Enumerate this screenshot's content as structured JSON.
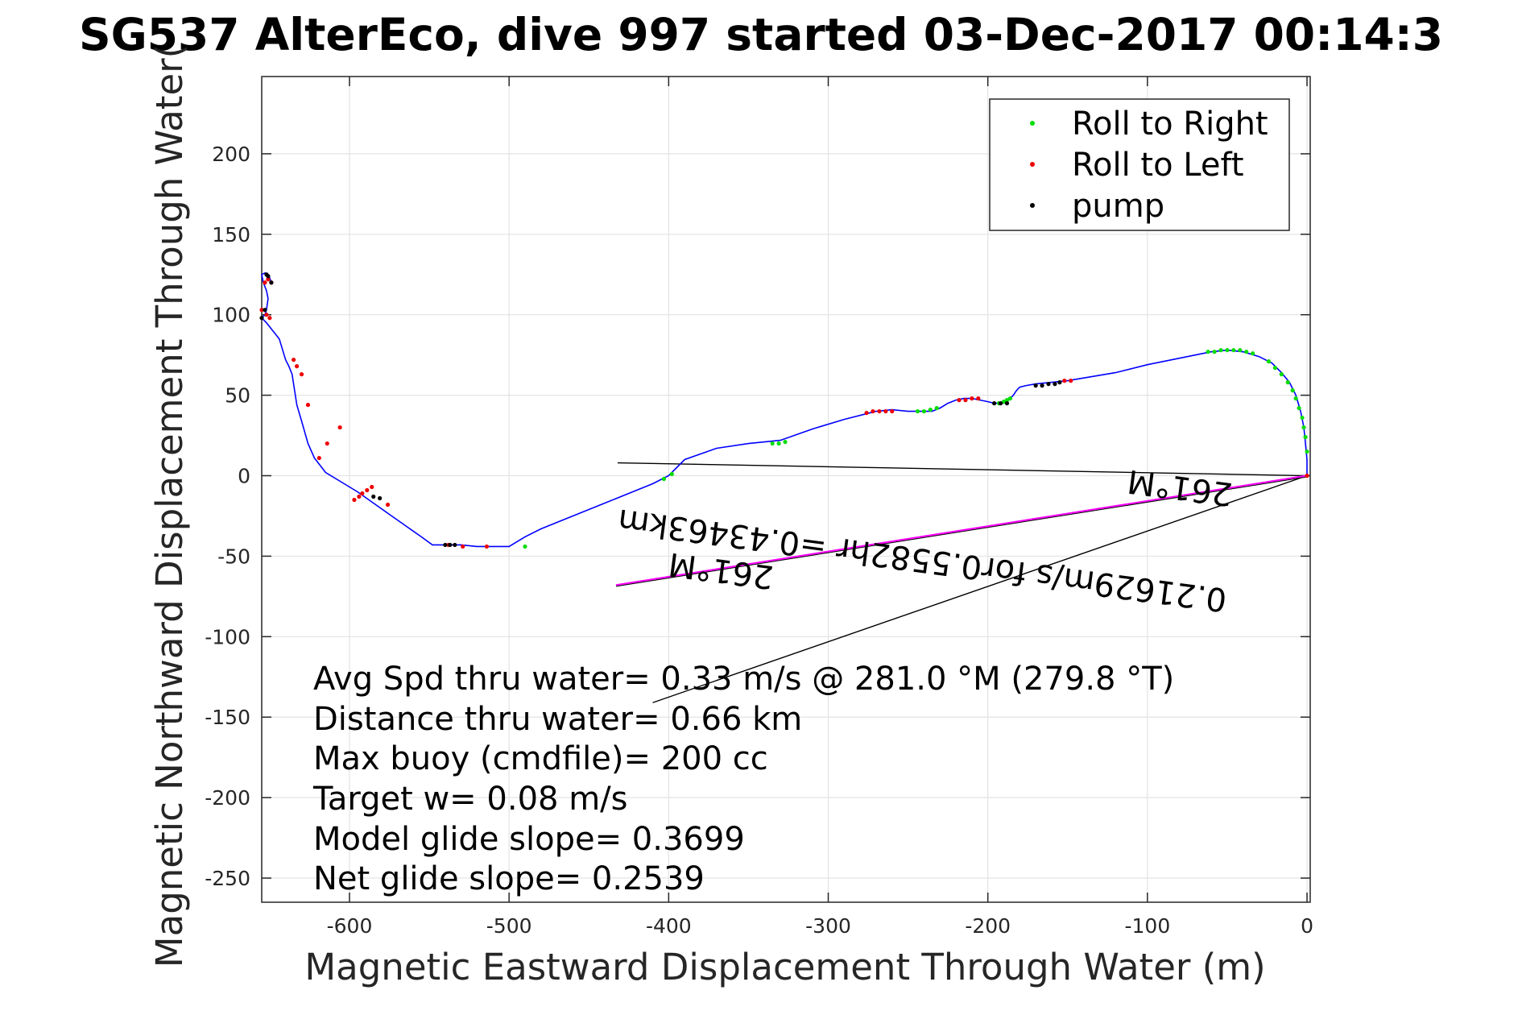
{
  "chart_data": {
    "type": "line",
    "title": "SG537 AlterEco, dive 997 started 03-Dec-2017 00:14:3",
    "xlabel": "Magnetic Eastward Displacement Through Water (m)",
    "ylabel": "Magnetic Northward Displacement Through Water(",
    "xlim": [
      -655,
      2
    ],
    "ylim": [
      -265,
      248
    ],
    "xticks": [
      -600,
      -500,
      -400,
      -300,
      -200,
      -100,
      0
    ],
    "yticks": [
      -250,
      -200,
      -150,
      -100,
      -50,
      0,
      50,
      100,
      150,
      200
    ],
    "xtick_labels": [
      "-600",
      "-500",
      "-400",
      "-300",
      "-200",
      "-100",
      "0"
    ],
    "ytick_labels": [
      "-250",
      "-200",
      "-150",
      "-100",
      "-50",
      "0",
      "50",
      "100",
      "150",
      "200"
    ],
    "grid": true,
    "legend_position": "top-right",
    "legend": [
      "Roll to Right",
      "Roll to Left",
      "pump"
    ],
    "colors": {
      "track": "#0000ff",
      "roll_right": "#00dd00",
      "roll_left": "#ee0000",
      "pump": "#000000",
      "current": "#ff00ff"
    },
    "track": {
      "x": [
        0,
        0,
        -1,
        -2,
        -4,
        -7,
        -11,
        -16,
        -22,
        -30,
        -40,
        -50,
        -60,
        -80,
        -100,
        -120,
        -150,
        -160,
        -170,
        -176,
        -180,
        -182,
        -184,
        -186,
        -188,
        -190,
        -193,
        -196,
        -200,
        -205,
        -210,
        -215,
        -220,
        -225,
        -230,
        -235,
        -240,
        -245,
        -250,
        -260,
        -270,
        -290,
        -310,
        -330,
        -350,
        -370,
        -390,
        -395,
        -400,
        -410,
        -420,
        -440,
        -460,
        -480,
        -490,
        -500,
        -510,
        -520,
        -530,
        -540,
        -548,
        -555,
        -565,
        -575,
        -585,
        -595,
        -605,
        -615,
        -622,
        -626,
        -630,
        -633,
        -636,
        -638,
        -640,
        -644,
        -648,
        -652,
        -655,
        -653,
        -652,
        -651,
        -652,
        -654,
        -655,
        -653,
        -650,
        -649
      ],
      "y": [
        0,
        10,
        20,
        30,
        40,
        50,
        58,
        64,
        70,
        74,
        77,
        78,
        77,
        73,
        69,
        64,
        59,
        58,
        57,
        56,
        55,
        53,
        50,
        48,
        46,
        45,
        45,
        45,
        46,
        47,
        48,
        48,
        47,
        45,
        42,
        40,
        40,
        40,
        40,
        41,
        40,
        35,
        29,
        22,
        20,
        17,
        10,
        5,
        0,
        -5,
        -9,
        -17,
        -25,
        -33,
        -38,
        -44,
        -44,
        -44,
        -43,
        -43,
        -43,
        -38,
        -31,
        -24,
        -17,
        -10,
        -4,
        2,
        11,
        20,
        34,
        44,
        63,
        68,
        72,
        85,
        90,
        95,
        98,
        100,
        103,
        110,
        115,
        120,
        125,
        126,
        123,
        120
      ],
      "segments": [
        [
          0,
          0.8
        ],
        [
          -30,
          -3
        ],
        [
          -60,
          -5
        ],
        [
          -100,
          -8
        ],
        [
          -150,
          -12
        ],
        [
          -200,
          -15
        ],
        [
          -250,
          -20
        ],
        [
          -300,
          -25
        ],
        [
          -350,
          -31
        ],
        [
          -400,
          -38
        ],
        [
          -452,
          -44
        ],
        [
          -500,
          -49
        ]
      ]
    },
    "roll_right": {
      "x": [
        -62,
        -58,
        -54,
        -50,
        -46,
        -42,
        -38,
        -34,
        -24,
        -20,
        -16,
        -12,
        -9,
        -7,
        -5,
        -3,
        -2,
        -1,
        0,
        -186,
        -188,
        -190,
        -193,
        -244,
        -240,
        -236,
        -232,
        -335,
        -331,
        -327,
        -403,
        -398,
        -490
      ],
      "y": [
        77,
        77,
        78,
        78,
        78,
        78,
        77,
        76,
        71,
        67,
        63,
        58,
        53,
        48,
        42,
        36,
        30,
        24,
        15,
        48,
        47,
        46,
        45,
        40,
        40,
        41,
        42,
        20,
        20,
        21,
        -2,
        1,
        -44
      ]
    },
    "roll_left": {
      "x": [
        -276,
        -272,
        -268,
        -264,
        -260,
        -218,
        -214,
        -210,
        -206,
        -152,
        -148,
        -514,
        -529,
        -538,
        -586,
        -589,
        -592,
        -594,
        -597,
        -576,
        -606,
        -614,
        -619,
        -626,
        -630,
        -633,
        -635,
        -650,
        -652,
        -655,
        -653,
        -651,
        -649,
        0
      ],
      "y": [
        39,
        40,
        40,
        40,
        40,
        47,
        47,
        48,
        48,
        59,
        59,
        -44,
        -44,
        -43,
        -7,
        -9,
        -11,
        -13,
        -15,
        -18,
        30,
        20,
        11,
        44,
        63,
        68,
        72,
        98,
        100,
        103,
        120,
        122,
        120,
        0
      ],
      "labeled_edge": []
    },
    "pump": {
      "x": [
        -196,
        -192,
        -188,
        -170,
        -166,
        -162,
        -158,
        -155,
        -540,
        -537,
        -534,
        -585,
        -581,
        -655,
        -653,
        -652,
        -651,
        -649
      ],
      "y": [
        45,
        45,
        45,
        56,
        56,
        57,
        57,
        58,
        -43,
        -43,
        -43,
        -13,
        -14,
        98,
        103,
        125,
        124,
        120
      ]
    },
    "current_line": {
      "x": [
        0,
        -433
      ],
      "y": [
        0,
        -68
      ],
      "color": "#ff00ff"
    },
    "reference_lines": [
      {
        "x": [
          0,
          -432
        ],
        "y": [
          0,
          8
        ]
      },
      {
        "x": [
          0,
          -410
        ],
        "y": [
          0,
          -141
        ]
      }
    ],
    "flipped_labels": {
      "label_far": "261°M",
      "label_near": "261°M",
      "current_text": "0.21629m/s for0.5582hr =0.43463km"
    },
    "annotations": [
      "Avg Spd thru water=  0.33 m/s @ 281.0 °M (279.8 °T)",
      "Distance thru water=  0.66 km",
      "Max buoy (cmdfile)= 200 cc",
      "Target w= 0.08 m/s",
      "Model glide slope= 0.3699",
      "Net glide slope= 0.2539"
    ]
  }
}
